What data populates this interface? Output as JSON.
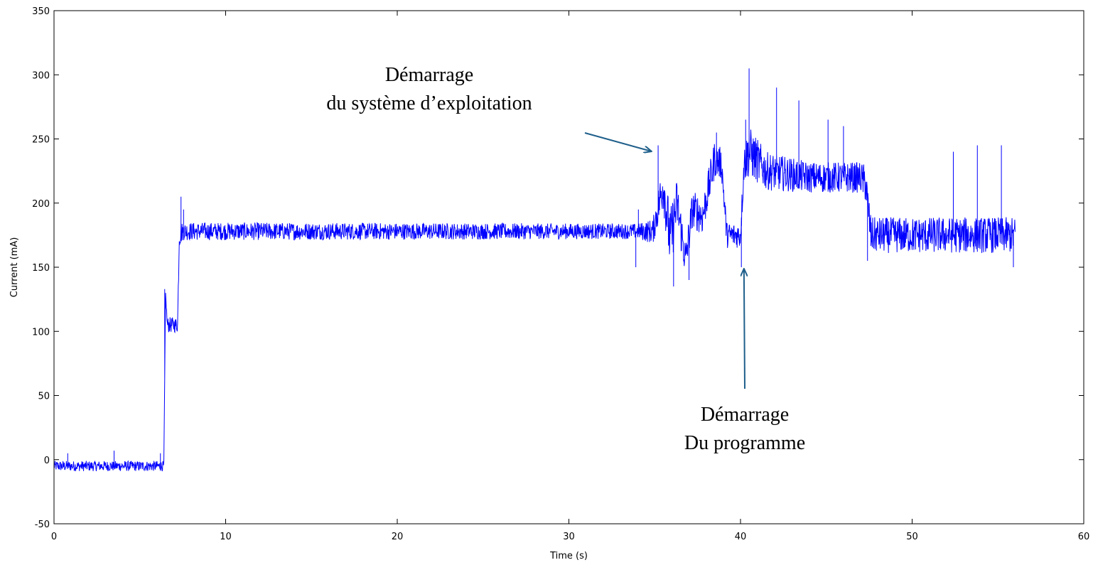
{
  "chart_data": {
    "type": "line",
    "title": "",
    "xlabel": "Time (s)",
    "ylabel": "Current (mA)",
    "xlim": [
      0,
      60
    ],
    "ylim": [
      -50,
      350
    ],
    "xticks": [
      0,
      10,
      20,
      30,
      40,
      50,
      60
    ],
    "yticks": [
      -50,
      0,
      50,
      100,
      150,
      200,
      250,
      300,
      350
    ],
    "grid": false,
    "colors": {
      "series": "#0000ff",
      "annotation_arrow": "#1f5f8b",
      "axes": "#000000"
    },
    "series": [
      {
        "x": [
          0,
          6.4,
          6.5,
          6.6,
          7.2,
          7.3,
          7.5,
          34.0,
          34.9,
          35.5,
          35.9,
          36.3,
          36.8,
          37.2,
          37.8,
          38.5,
          38.9,
          39.2,
          40.0,
          40.2,
          40.5,
          41.5,
          44.0,
          47.0,
          47.3,
          47.6,
          56.0
        ],
        "y": [
          -5,
          -5,
          130,
          105,
          105,
          175,
          178,
          178,
          178,
          215,
          170,
          200,
          155,
          195,
          190,
          235,
          230,
          175,
          175,
          230,
          240,
          225,
          220,
          220,
          215,
          175,
          175
        ],
        "noise": [
          4,
          4,
          0,
          6,
          6,
          10,
          7,
          6,
          10,
          20,
          25,
          20,
          15,
          15,
          15,
          15,
          12,
          10,
          10,
          15,
          20,
          15,
          12,
          12,
          15,
          14,
          14
        ],
        "spikes": [
          {
            "x": 0.8,
            "y": 5
          },
          {
            "x": 3.5,
            "y": 7
          },
          {
            "x": 6.2,
            "y": 5
          },
          {
            "x": 6.45,
            "y": 133
          },
          {
            "x": 7.4,
            "y": 205
          },
          {
            "x": 7.55,
            "y": 195
          },
          {
            "x": 33.9,
            "y": 150
          },
          {
            "x": 34.05,
            "y": 195
          },
          {
            "x": 35.2,
            "y": 245
          },
          {
            "x": 36.1,
            "y": 135
          },
          {
            "x": 37.0,
            "y": 140
          },
          {
            "x": 38.6,
            "y": 255
          },
          {
            "x": 40.05,
            "y": 150
          },
          {
            "x": 40.3,
            "y": 265
          },
          {
            "x": 40.5,
            "y": 305
          },
          {
            "x": 42.1,
            "y": 290
          },
          {
            "x": 43.4,
            "y": 280
          },
          {
            "x": 45.1,
            "y": 265
          },
          {
            "x": 46.0,
            "y": 260
          },
          {
            "x": 47.4,
            "y": 155
          },
          {
            "x": 52.4,
            "y": 240
          },
          {
            "x": 53.8,
            "y": 245
          },
          {
            "x": 55.2,
            "y": 245
          },
          {
            "x": 55.9,
            "y": 150
          }
        ]
      }
    ],
    "annotations": [
      {
        "lines": [
          "Démarrage",
          "du système d’exploitation"
        ],
        "target_x": 34.9,
        "target_y": 240
      },
      {
        "lines": [
          "Démarrage",
          "Du programme"
        ],
        "target_x": 40.2,
        "target_y": 150
      }
    ]
  }
}
